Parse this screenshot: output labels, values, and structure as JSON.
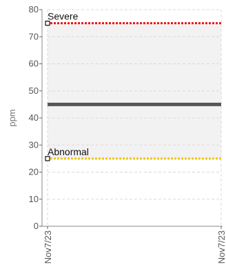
{
  "chart_data": {
    "type": "line",
    "ylabel": "ppm",
    "ylim": [
      0,
      80
    ],
    "yticks": [
      0,
      10,
      20,
      30,
      40,
      50,
      60,
      70,
      80
    ],
    "x_ticks": [
      "Nov7/23",
      "Nov7/23"
    ],
    "grid": true,
    "series": [
      {
        "values": [
          45,
          45
        ],
        "color": "#555555"
      }
    ],
    "thresholds": [
      {
        "name": "Severe",
        "value": 75,
        "color": "#ee1111"
      },
      {
        "name": "Abnormal",
        "value": 25,
        "color": "#f2c400"
      }
    ],
    "normal_band": [
      25,
      75
    ]
  }
}
